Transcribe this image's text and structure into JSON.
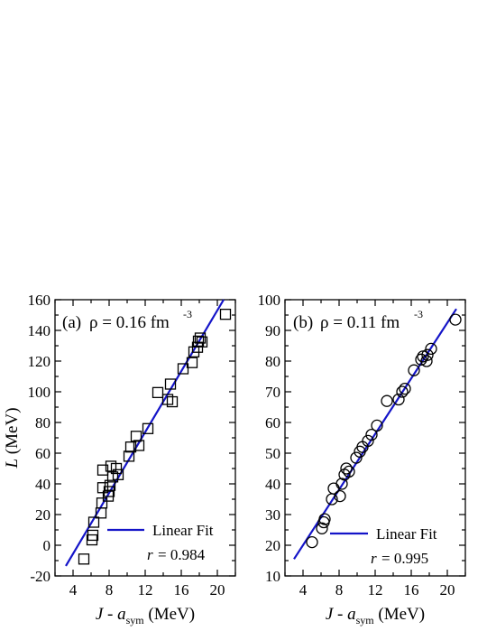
{
  "figure": {
    "ylabel": "L (MeV)",
    "xlabel_main": "J - a",
    "xlabel_sub": "sym",
    "xlabel_unit": " (MeV)"
  },
  "colors": {
    "fit_line": "#1414c8",
    "markers": "#000000",
    "axes": "#000000"
  },
  "chart_data": [
    {
      "type": "scatter",
      "panel_label": "(a)",
      "density_text": "ρ = 0.16 fm",
      "density_exp": "-3",
      "marker": "square",
      "xlim": [
        2,
        22
      ],
      "ylim": [
        -20,
        160
      ],
      "xticks": [
        4,
        8,
        12,
        16,
        20
      ],
      "yticks": [
        -20,
        0,
        20,
        40,
        60,
        80,
        100,
        120,
        140,
        160
      ],
      "legend": {
        "label": "Linear Fit",
        "r_label": "r",
        "r_value": "= 0.984",
        "position": "bottom-right"
      },
      "fit_line": {
        "x": [
          3.2,
          20.7
        ],
        "y": [
          -13.5,
          160
        ]
      },
      "points": [
        [
          5.2,
          -9
        ],
        [
          6.1,
          3.5
        ],
        [
          6.2,
          6.5
        ],
        [
          6.3,
          15
        ],
        [
          7.1,
          21
        ],
        [
          7.2,
          27.5
        ],
        [
          7.3,
          37.5
        ],
        [
          7.3,
          49
        ],
        [
          7.9,
          32
        ],
        [
          8.0,
          35
        ],
        [
          8.1,
          39
        ],
        [
          8.2,
          51.5
        ],
        [
          8.4,
          44.5
        ],
        [
          8.8,
          50
        ],
        [
          9.0,
          46
        ],
        [
          10.2,
          58
        ],
        [
          10.4,
          64
        ],
        [
          11.0,
          71
        ],
        [
          11.3,
          65
        ],
        [
          12.3,
          76
        ],
        [
          13.4,
          99.5
        ],
        [
          14.5,
          95
        ],
        [
          14.8,
          105
        ],
        [
          15.0,
          93.5
        ],
        [
          16.2,
          115
        ],
        [
          17.2,
          119
        ],
        [
          17.4,
          126
        ],
        [
          17.8,
          129
        ],
        [
          17.9,
          133
        ],
        [
          18.1,
          135
        ],
        [
          18.3,
          132.5
        ],
        [
          20.9,
          150.5
        ]
      ]
    },
    {
      "type": "scatter",
      "panel_label": "(b)",
      "density_text": "ρ = 0.11 fm",
      "density_exp": "-3",
      "marker": "circle",
      "xlim": [
        2,
        22
      ],
      "ylim": [
        10,
        100
      ],
      "xticks": [
        4,
        8,
        12,
        16,
        20
      ],
      "yticks": [
        10,
        20,
        30,
        40,
        50,
        60,
        70,
        80,
        90,
        100
      ],
      "legend": {
        "label": "Linear Fit",
        "r_label": "r",
        "r_value": "= 0.995",
        "position": "bottom-right"
      },
      "fit_line": {
        "x": [
          3.0,
          21.0
        ],
        "y": [
          15.5,
          97
        ]
      },
      "points": [
        [
          5.0,
          21
        ],
        [
          6.1,
          25.5
        ],
        [
          6.3,
          27.5
        ],
        [
          6.4,
          28.5
        ],
        [
          7.2,
          35
        ],
        [
          7.4,
          38.5
        ],
        [
          8.1,
          36
        ],
        [
          8.3,
          40
        ],
        [
          8.6,
          43
        ],
        [
          8.8,
          45
        ],
        [
          9.1,
          44
        ],
        [
          9.9,
          48.5
        ],
        [
          10.3,
          50.5
        ],
        [
          10.6,
          52
        ],
        [
          11.2,
          54
        ],
        [
          11.6,
          56
        ],
        [
          12.2,
          59
        ],
        [
          13.3,
          67
        ],
        [
          14.6,
          67.5
        ],
        [
          15.0,
          70
        ],
        [
          15.3,
          71
        ],
        [
          16.3,
          77
        ],
        [
          17.1,
          80.5
        ],
        [
          17.3,
          81.5
        ],
        [
          17.7,
          80
        ],
        [
          17.8,
          82
        ],
        [
          18.2,
          84
        ],
        [
          20.9,
          93.5
        ]
      ]
    }
  ]
}
